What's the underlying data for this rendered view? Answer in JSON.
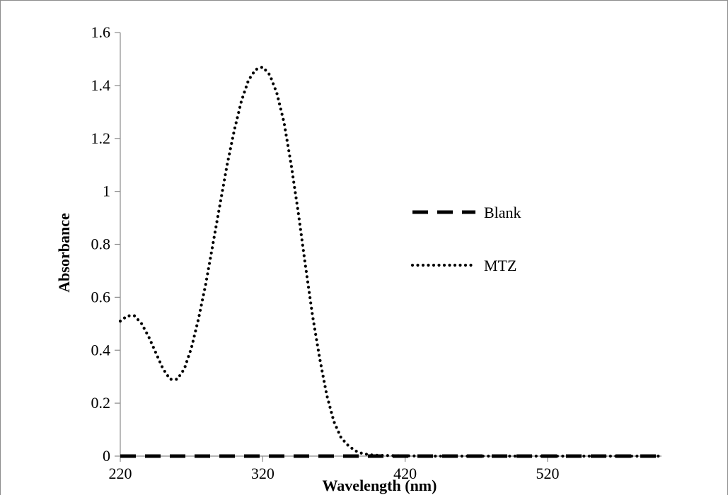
{
  "chart_data": {
    "type": "line",
    "title": "",
    "xlabel": "Wavelength (nm)",
    "ylabel": "Absorbance",
    "xlim": [
      220,
      600
    ],
    "ylim": [
      0,
      1.6
    ],
    "x_ticks": [
      220,
      320,
      420,
      520
    ],
    "x_tick_labels": [
      "220",
      "320",
      "420",
      "520"
    ],
    "y_ticks": [
      0,
      0.2,
      0.4,
      0.6,
      0.8,
      1,
      1.2,
      1.4,
      1.6
    ],
    "y_tick_labels": [
      "0",
      "0.2",
      "0.4",
      "0.6",
      "0.8",
      "1",
      "1.2",
      "1.4",
      "1.6"
    ],
    "grid": false,
    "legend_position": "center-right",
    "series": [
      {
        "name": "Blank",
        "style": "dashed",
        "color": "#000000",
        "x": [
          220,
          600
        ],
        "y": [
          0,
          0
        ]
      },
      {
        "name": "MTZ",
        "style": "dotted",
        "color": "#000000",
        "x": [
          220,
          225,
          230,
          235,
          240,
          245,
          250,
          255,
          260,
          265,
          270,
          275,
          280,
          285,
          290,
          295,
          300,
          305,
          310,
          315,
          320,
          325,
          330,
          335,
          340,
          345,
          350,
          355,
          360,
          365,
          370,
          375,
          380,
          385,
          390,
          395,
          400,
          410,
          420,
          440,
          460,
          480,
          500,
          520,
          540,
          560,
          580,
          600
        ],
        "y": [
          0.51,
          0.53,
          0.53,
          0.5,
          0.45,
          0.39,
          0.33,
          0.29,
          0.29,
          0.33,
          0.41,
          0.52,
          0.65,
          0.8,
          0.95,
          1.1,
          1.23,
          1.34,
          1.42,
          1.46,
          1.47,
          1.44,
          1.37,
          1.26,
          1.1,
          0.92,
          0.72,
          0.53,
          0.37,
          0.23,
          0.13,
          0.07,
          0.04,
          0.02,
          0.01,
          0.005,
          0.003,
          0.002,
          0.001,
          0.0,
          0.0,
          0.0,
          0.0,
          0.0,
          0.0,
          0.0,
          0.0,
          0.0
        ]
      }
    ]
  }
}
